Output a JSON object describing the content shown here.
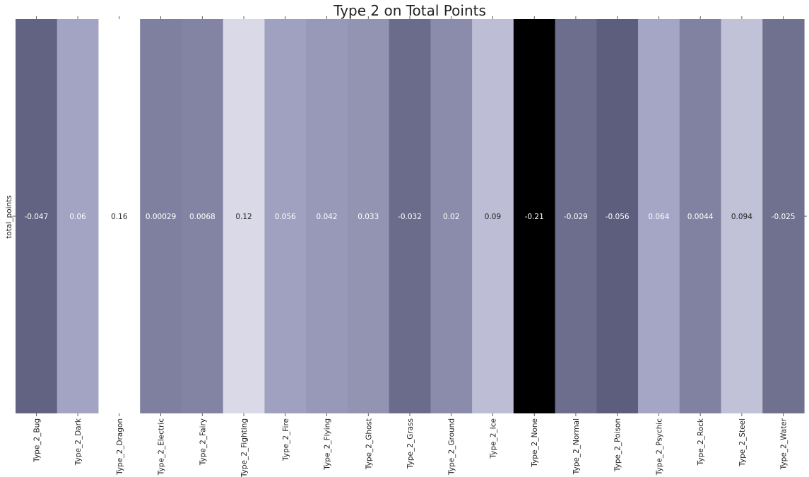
{
  "chart_data": {
    "type": "heatmap",
    "title": "Type 2 on Total Points",
    "row_labels": [
      "total_points"
    ],
    "categories": [
      "Type_2_Bug",
      "Type_2_Dark",
      "Type_2_Dragon",
      "Type_2_Electric",
      "Type_2_Fairy",
      "Type_2_Fighting",
      "Type_2_Fire",
      "Type_2_Flying",
      "Type_2_Ghost",
      "Type_2_Grass",
      "Type_2_Ground",
      "Type_2_Ice",
      "Type_2_None",
      "Type_2_Normal",
      "Type_2_Poison",
      "Type_2_Psychic",
      "Type_2_Rock",
      "Type_2_Steel",
      "Type_2_Water"
    ],
    "values": [
      [
        -0.047,
        0.06,
        0.16,
        0.00029,
        0.0068,
        0.12,
        0.056,
        0.042,
        0.033,
        -0.032,
        0.02,
        0.09,
        -0.21,
        -0.029,
        -0.056,
        0.064,
        0.0044,
        0.094,
        -0.025
      ]
    ],
    "annotations": [
      "-0.047",
      "0.06",
      "0.16",
      "0.00029",
      "0.0068",
      "0.12",
      "0.056",
      "0.042",
      "0.033",
      "-0.032",
      "0.02",
      "0.09",
      "-0.21",
      "-0.029",
      "-0.056",
      "0.064",
      "0.0044",
      "0.094",
      "-0.025"
    ],
    "colormap": "bone",
    "vmin": -0.21,
    "vmax": 0.16,
    "colorbar": false,
    "grid": false,
    "xtick_rotation": 90
  }
}
